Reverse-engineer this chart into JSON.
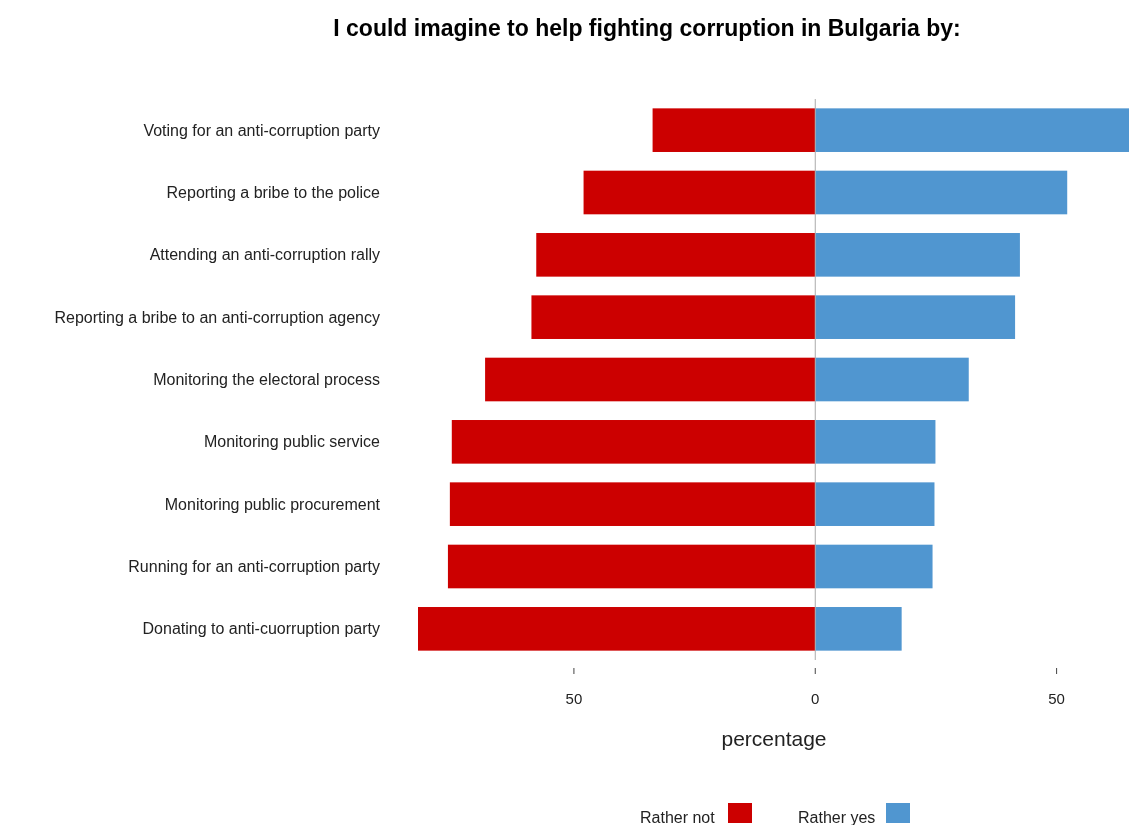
{
  "chart_data": {
    "type": "bar",
    "orientation": "horizontal",
    "stacked": true,
    "title": "I could imagine to help fighting corruption in Bulgaria by:",
    "xlabel": "percentage",
    "categories": [
      "Voting for an anti-corruption party",
      "Reporting a bribe to the police",
      "Attending an anti-corruption rally",
      "Reporting a bribe to an anti-corruption agency",
      "Monitoring the electoral process",
      "Monitoring public service",
      "Monitoring public procurement",
      "Running for an anti-corruption party",
      "Donating to anti-cuorruption party"
    ],
    "series": [
      {
        "name": "Rather not",
        "color": "#cc0000",
        "values": [
          -33.7,
          -48,
          -57.8,
          -58.8,
          -68.4,
          -75.3,
          -75.7,
          -76.1,
          -82.3
        ]
      },
      {
        "name": "Rather yes",
        "color": "#5096d0",
        "values": [
          65,
          52.2,
          42.4,
          41.4,
          31.8,
          24.9,
          24.7,
          24.3,
          17.9
        ]
      }
    ],
    "xlim": [
      -82.3,
      65
    ],
    "xticks": [
      {
        "value": -50,
        "label": "50"
      },
      0,
      50
    ],
    "ref_lines": [
      {
        "axis": "x",
        "value": 0,
        "color": "#aaaaaa"
      }
    ],
    "grid": false,
    "legend": "bottom"
  }
}
